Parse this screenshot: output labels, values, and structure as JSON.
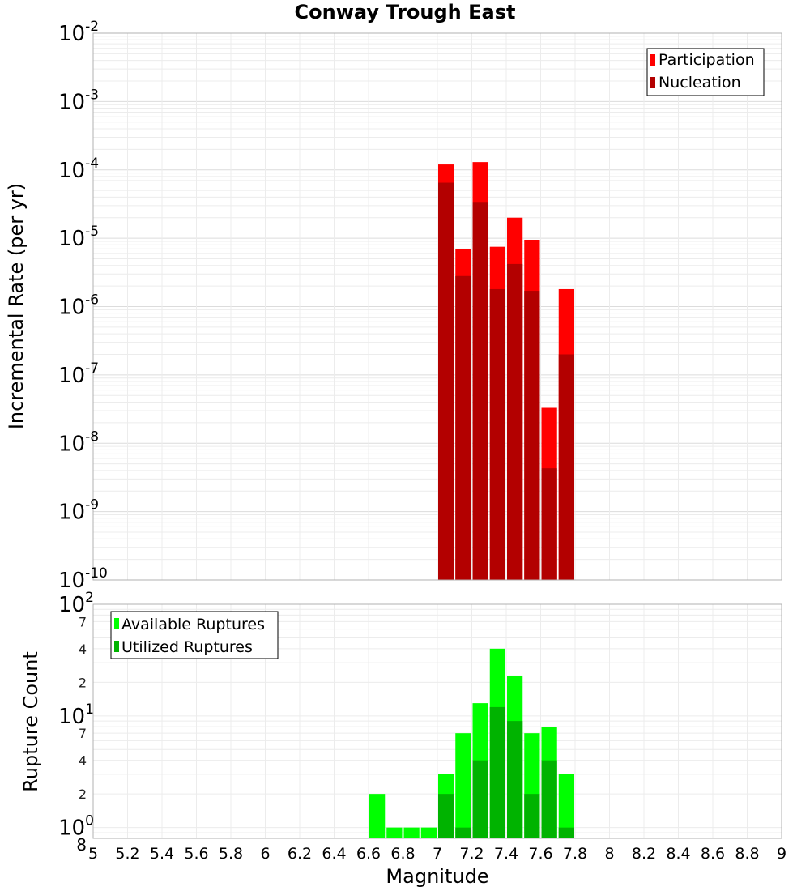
{
  "title": "Conway Trough East",
  "chart_data": [
    {
      "type": "bar",
      "panel": "top",
      "xlabel": "Magnitude",
      "ylabel": "Incremental Rate (per yr)",
      "yscale": "log",
      "ylim": [
        1e-10,
        0.01
      ],
      "xlim": [
        5,
        9
      ],
      "bin_width": 0.1,
      "x_ticks": [
        "5",
        "5.2",
        "5.4",
        "5.6",
        "5.8",
        "6",
        "6.2",
        "6.4",
        "6.6",
        "6.8",
        "7",
        "7.2",
        "7.4",
        "7.6",
        "7.8",
        "8",
        "8.2",
        "8.4",
        "8.6",
        "8.8",
        "9"
      ],
      "y_tick_labels": [
        {
          "base": "10",
          "exp": "-10"
        },
        {
          "base": "10",
          "exp": "-9"
        },
        {
          "base": "10",
          "exp": "-8"
        },
        {
          "base": "10",
          "exp": "-7"
        },
        {
          "base": "10",
          "exp": "-6"
        },
        {
          "base": "10",
          "exp": "-5"
        },
        {
          "base": "10",
          "exp": "-4"
        },
        {
          "base": "10",
          "exp": "-3"
        },
        {
          "base": "10",
          "exp": "-2"
        }
      ],
      "grid": true,
      "legend_position": "top-right",
      "x": [
        7.05,
        7.15,
        7.25,
        7.35,
        7.45,
        7.55,
        7.65,
        7.75
      ],
      "series": [
        {
          "name": "Participation",
          "color": "#ff0000",
          "values": [
            0.00012,
            7e-06,
            0.00013,
            7.5e-06,
            2e-05,
            9.5e-06,
            3.3e-08,
            1.8e-06
          ]
        },
        {
          "name": "Nucleation",
          "color": "#b30000",
          "values": [
            6.5e-05,
            2.8e-06,
            3.4e-05,
            1.8e-06,
            4.2e-06,
            1.7e-06,
            4.3e-09,
            2e-07
          ]
        }
      ]
    },
    {
      "type": "bar",
      "panel": "bottom",
      "xlabel": "Magnitude",
      "ylabel": "Rupture Count",
      "yscale": "log",
      "ylim": [
        0.8,
        100
      ],
      "xlim": [
        5,
        9
      ],
      "bin_width": 0.1,
      "y_major_labels": [
        {
          "base": "10",
          "exp": "0"
        },
        {
          "base": "10",
          "exp": "1"
        },
        {
          "base": "10",
          "exp": "2"
        }
      ],
      "y_minor_labels": [
        "8",
        "2",
        "4",
        "7",
        "2",
        "4",
        "7"
      ],
      "grid": true,
      "legend_position": "top-left",
      "x": [
        6.65,
        6.75,
        6.85,
        6.95,
        7.05,
        7.15,
        7.25,
        7.35,
        7.45,
        7.55,
        7.65,
        7.75
      ],
      "series": [
        {
          "name": "Available Ruptures",
          "color": "#00ff00",
          "values": [
            2,
            1,
            1,
            1,
            3,
            7,
            13,
            40,
            23,
            7,
            8,
            3
          ]
        },
        {
          "name": "Utilized Ruptures",
          "color": "#00b300",
          "values": [
            0,
            0,
            0,
            0,
            2,
            1,
            4,
            12,
            9,
            2,
            4,
            1
          ]
        }
      ]
    }
  ]
}
